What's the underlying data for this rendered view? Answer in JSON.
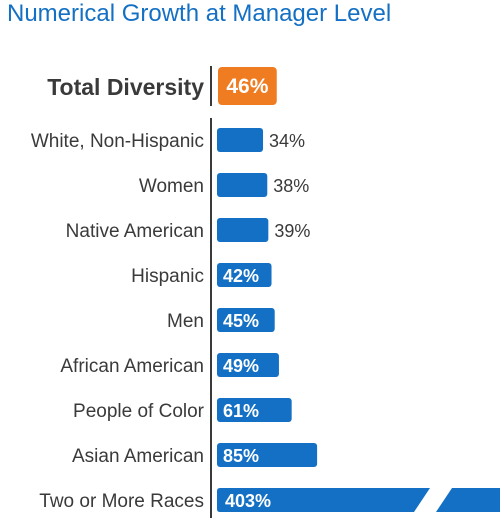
{
  "chart_data": {
    "type": "bar",
    "orientation": "horizontal",
    "title": "Numerical Growth at Manager Level",
    "highlight": {
      "label": "Total Diversity",
      "value": 46,
      "display": "46%",
      "color": "#f07c22"
    },
    "categories": [
      "White, Non-Hispanic",
      "Women",
      "Native American",
      "Hispanic",
      "Men",
      "African American",
      "People of Color",
      "Asian American",
      "Two or More Races"
    ],
    "values": [
      34,
      38,
      39,
      42,
      45,
      49,
      61,
      85,
      403
    ],
    "value_labels": [
      "34%",
      "38%",
      "39%",
      "42%",
      "45%",
      "49%",
      "61%",
      "85%",
      "403%"
    ],
    "unit": "%",
    "axis_break": {
      "category": "Two or More Races"
    },
    "bar_color": "#1470c4",
    "grid": false,
    "legend": "none"
  }
}
